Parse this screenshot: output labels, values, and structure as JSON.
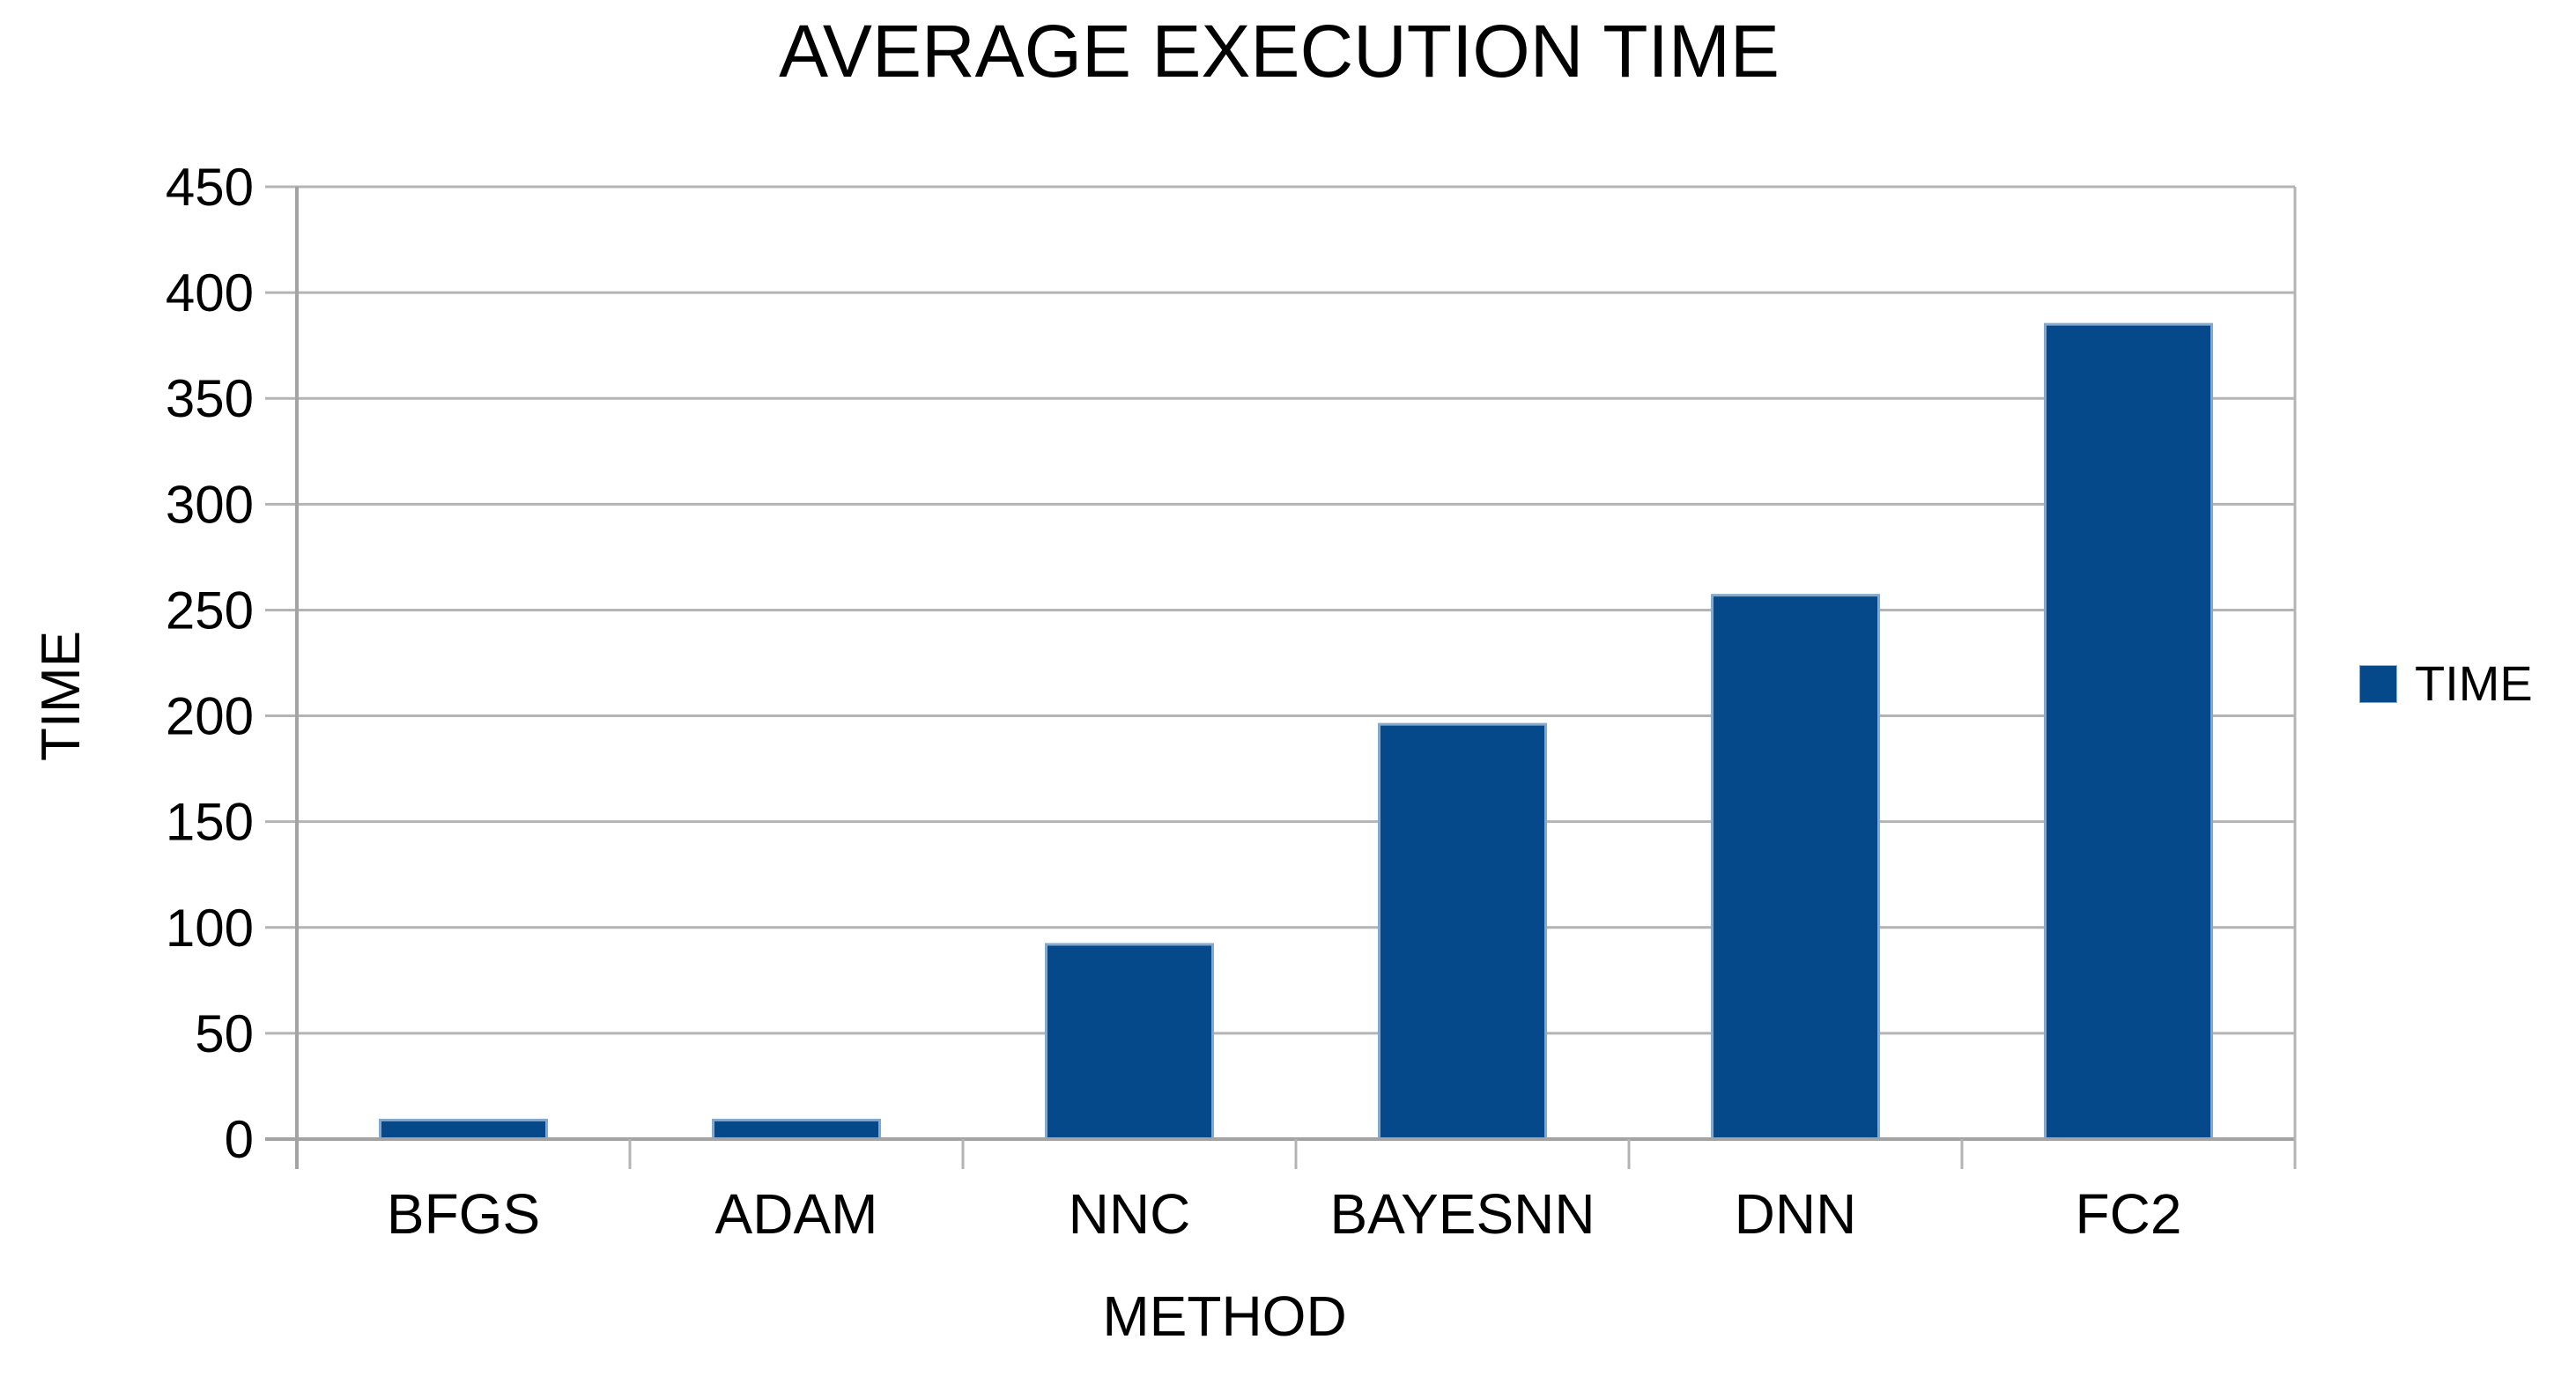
{
  "chart_data": {
    "type": "bar",
    "title": "AVERAGE EXECUTION TIME",
    "xlabel": "METHOD",
    "ylabel": "TIME",
    "categories": [
      "BFGS",
      "ADAM",
      "NNC",
      "BAYESNN",
      "DNN",
      "FC2"
    ],
    "series": [
      {
        "name": "TIME",
        "values": [
          9,
          9,
          92,
          196,
          257,
          385
        ]
      }
    ],
    "ylim": [
      0,
      450
    ],
    "ytick_step": 50,
    "yticks": [
      0,
      50,
      100,
      150,
      200,
      250,
      300,
      350,
      400,
      450
    ],
    "grid": true,
    "legend": {
      "position": "right",
      "entries": [
        "TIME"
      ]
    },
    "colors": {
      "bar_fill": "#05498a",
      "bar_border": "#84a9cf",
      "gridline": "#b4b4b4",
      "axis": "#a3a3a3",
      "text": "#000000",
      "background": "#ffffff"
    }
  }
}
